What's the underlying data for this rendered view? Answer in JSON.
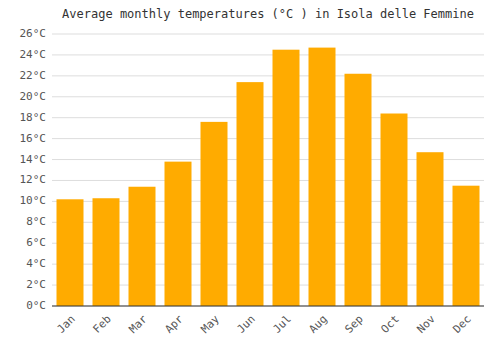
{
  "chart_data": {
    "type": "bar",
    "title": "Average monthly temperatures (°C ) in Isola delle Femmine",
    "categories": [
      "Jan",
      "Feb",
      "Mar",
      "Apr",
      "May",
      "Jun",
      "Jul",
      "Aug",
      "Sep",
      "Oct",
      "Nov",
      "Dec"
    ],
    "values": [
      10.2,
      10.3,
      11.4,
      13.8,
      17.6,
      21.4,
      24.5,
      24.7,
      22.2,
      18.4,
      14.7,
      11.5
    ],
    "color": "#FFAB00",
    "ylim": [
      0,
      26
    ],
    "yticks": [
      {
        "value": 0,
        "label": "0°C"
      },
      {
        "value": 2,
        "label": "2°C"
      },
      {
        "value": 4,
        "label": "4°C"
      },
      {
        "value": 6,
        "label": "6°C"
      },
      {
        "value": 8,
        "label": "8°C"
      },
      {
        "value": 10,
        "label": "10°C"
      },
      {
        "value": 12,
        "label": "12°C"
      },
      {
        "value": 14,
        "label": "14°C"
      },
      {
        "value": 16,
        "label": "16°C"
      },
      {
        "value": 18,
        "label": "18°C"
      },
      {
        "value": 20,
        "label": "20°C"
      },
      {
        "value": 22,
        "label": "22°C"
      },
      {
        "value": 24,
        "label": "24°C"
      },
      {
        "value": 26,
        "label": "26°C"
      }
    ],
    "grid": true
  }
}
